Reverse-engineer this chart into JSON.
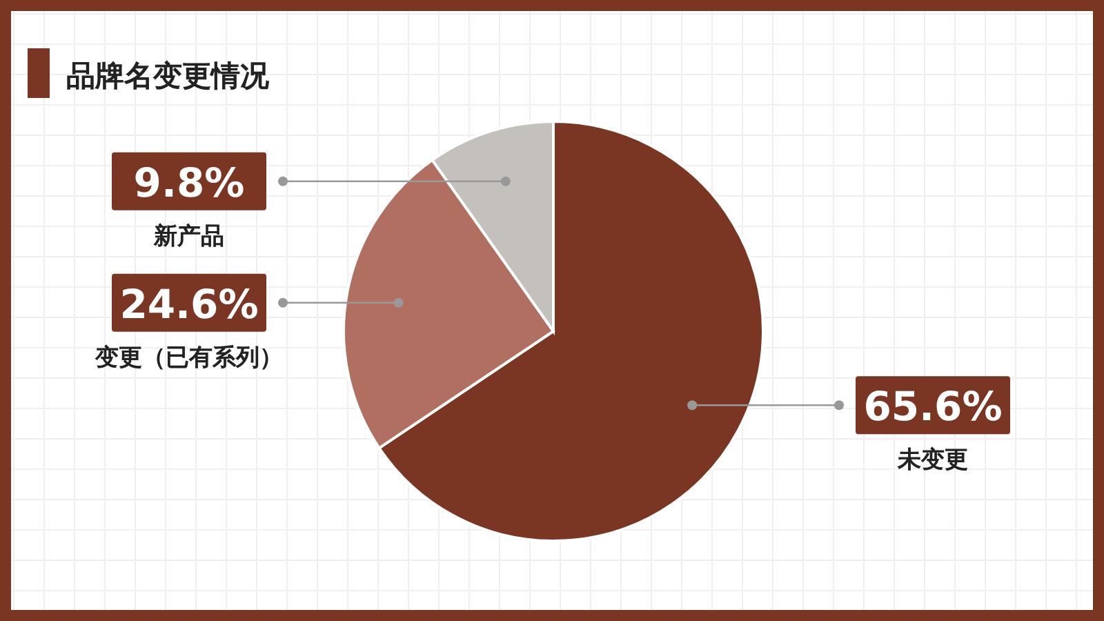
{
  "chart_data": {
    "type": "pie",
    "title": "品牌名变更情况",
    "categories": [
      "未变更",
      "变更（已有系列）",
      "新产品"
    ],
    "values": [
      65.6,
      24.6,
      9.8
    ],
    "value_labels": [
      "65.6%",
      "24.6%",
      "9.8%"
    ],
    "colors": [
      "#7a3523",
      "#b06f60",
      "#c4c1bd"
    ]
  }
}
